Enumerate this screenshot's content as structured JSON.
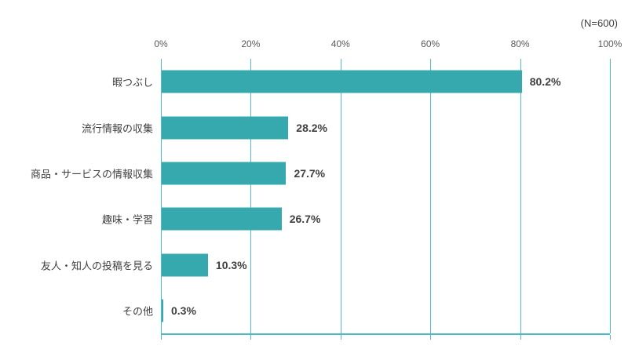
{
  "n_label": "(N=600)",
  "colors": {
    "bar": "#36a9ae",
    "grid": "#4ebecc",
    "axis": "#49b8c6",
    "text": "#404040",
    "tick_text": "#595959"
  },
  "chart_data": {
    "type": "bar",
    "orientation": "horizontal",
    "title": "",
    "annotation": "(N=600)",
    "categories": [
      "暇つぶし",
      "流行情報の収集",
      "商品・サービスの情報収集",
      "趣味・学習",
      "友人・知人の投稿を見る",
      "その他"
    ],
    "values": [
      80.2,
      28.2,
      27.7,
      26.7,
      10.3,
      0.3
    ],
    "value_labels": [
      "80.2%",
      "28.2%",
      "27.7%",
      "26.7%",
      "10.3%",
      "0.3%"
    ],
    "x_ticks": [
      "0%",
      "20%",
      "40%",
      "60%",
      "80%",
      "100%"
    ],
    "x_tick_values": [
      0,
      20,
      40,
      60,
      80,
      100
    ],
    "xlim": [
      0,
      100
    ],
    "grid": true,
    "legend_position": "none"
  }
}
